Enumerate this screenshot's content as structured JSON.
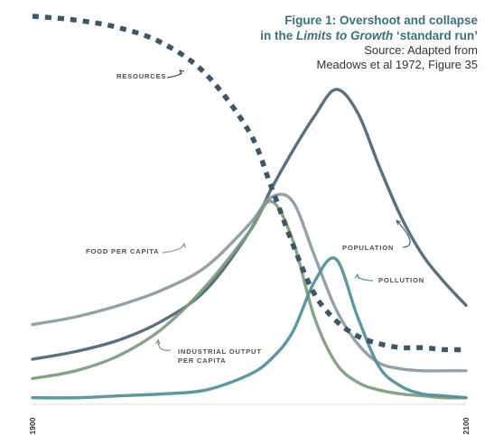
{
  "figure": {
    "title_line1": "Figure 1: Overshoot and collapse",
    "title_line2_pre": "in the ",
    "title_line2_italic": "Limits to Growth",
    "title_line2_post": " ‘standard run’",
    "source_line1": "Source: Adapted from",
    "source_line2": "Meadows  et al 1972, Figure 35"
  },
  "chart_data": {
    "type": "line",
    "x_tick_labels": [
      "1900",
      "2100"
    ],
    "xlim": [
      1900,
      2100
    ],
    "ylim": [
      0,
      1
    ],
    "x": [
      1900,
      1920,
      1940,
      1960,
      1980,
      2000,
      2010,
      2020,
      2030,
      2040,
      2050,
      2060,
      2070,
      2080,
      2090,
      2100
    ],
    "series": [
      {
        "name": "RESOURCES",
        "style": "dashed",
        "color": "#3e5666",
        "values": [
          1.0,
          0.99,
          0.97,
          0.93,
          0.85,
          0.7,
          0.56,
          0.41,
          0.28,
          0.21,
          0.17,
          0.15,
          0.14,
          0.14,
          0.135,
          0.135
        ]
      },
      {
        "name": "POPULATION",
        "style": "solid",
        "color": "#4d6473",
        "values": [
          0.11,
          0.13,
          0.16,
          0.21,
          0.29,
          0.44,
          0.55,
          0.65,
          0.74,
          0.81,
          0.75,
          0.61,
          0.48,
          0.38,
          0.31,
          0.25
        ]
      },
      {
        "name": "FOOD PER CAPITA",
        "style": "solid",
        "color": "#8a9aa2",
        "values": [
          0.2,
          0.22,
          0.25,
          0.29,
          0.35,
          0.46,
          0.53,
          0.52,
          0.38,
          0.24,
          0.15,
          0.1,
          0.085,
          0.08,
          0.08,
          0.08
        ]
      },
      {
        "name": "INDUSTRIAL OUTPUT PER CAPITA",
        "style": "solid",
        "color": "#7e9a7e",
        "values": [
          0.06,
          0.08,
          0.12,
          0.19,
          0.3,
          0.44,
          0.52,
          0.42,
          0.22,
          0.1,
          0.05,
          0.03,
          0.02,
          0.015,
          0.01,
          0.01
        ]
      },
      {
        "name": "POLLUTION",
        "style": "solid",
        "color": "#4f8f97",
        "values": [
          0.01,
          0.01,
          0.015,
          0.02,
          0.03,
          0.07,
          0.11,
          0.18,
          0.31,
          0.37,
          0.22,
          0.09,
          0.04,
          0.02,
          0.015,
          0.01
        ]
      }
    ],
    "annotations": [
      {
        "text": "RESOURCES",
        "series": "RESOURCES",
        "x": 1968,
        "y": 0.86
      },
      {
        "text": "FOOD PER CAPITA",
        "series": "FOOD PER CAPITA",
        "x": 1970,
        "y": 0.41
      },
      {
        "text": "INDUSTRIAL OUTPUT",
        "text2": "PER CAPITA",
        "series": "INDUSTRIAL OUTPUT PER CAPITA",
        "x": 1958,
        "y": 0.16
      },
      {
        "text": "POPULATION",
        "series": "POPULATION",
        "x": 2068,
        "y": 0.47
      },
      {
        "text": "POLLUTION",
        "series": "POLLUTION",
        "x": 2050,
        "y": 0.33
      }
    ],
    "grid": false,
    "legend": "inline labels"
  }
}
